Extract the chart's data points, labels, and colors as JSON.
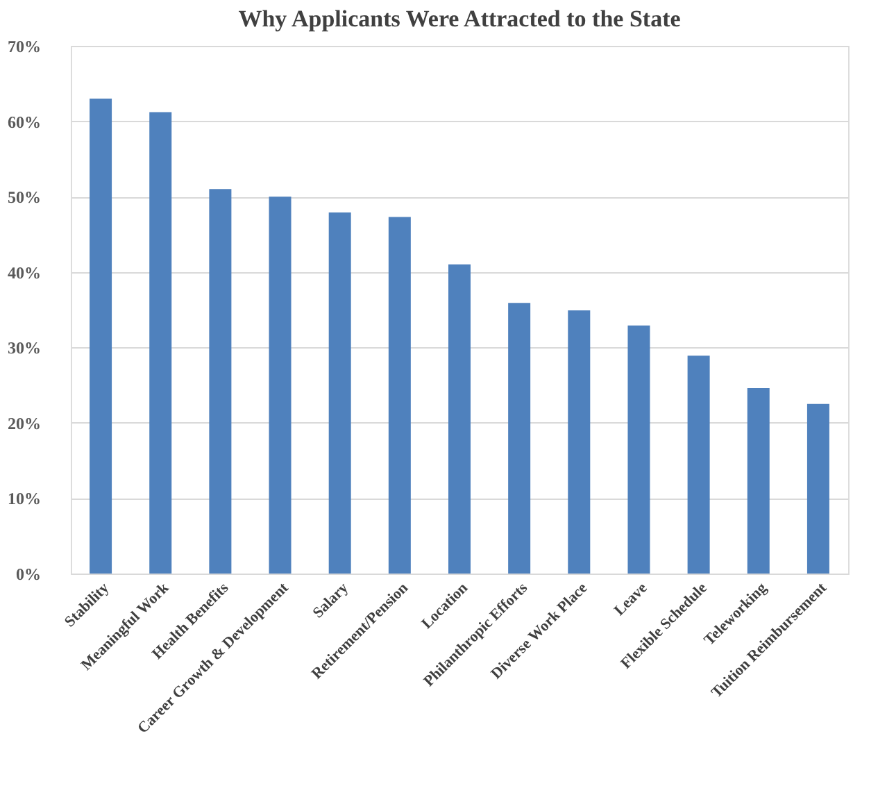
{
  "chart_data": {
    "type": "bar",
    "title": "Why Applicants Were Attracted to the State",
    "categories": [
      "Stability",
      "Meaningful Work",
      "Health Benefits",
      "Career Growth & Development",
      "Salary",
      "Retirement/Pension",
      "Location",
      "Philanthropic Efforts",
      "Diverse Work Place",
      "Leave",
      "Flexible Schedule",
      "Teleworking",
      "Tuition Reimbursement"
    ],
    "values": [
      63,
      61.2,
      51,
      50,
      47.9,
      47.3,
      41,
      35.9,
      34.9,
      32.9,
      28.9,
      24.6,
      22.5
    ],
    "color": "#4f81bd",
    "ylim": [
      0,
      70
    ],
    "yticks": [
      {
        "value": 0,
        "label": "0%"
      },
      {
        "value": 10,
        "label": "10%"
      },
      {
        "value": 20,
        "label": "20%"
      },
      {
        "value": 30,
        "label": "30%"
      },
      {
        "value": 40,
        "label": "40%"
      },
      {
        "value": 50,
        "label": "50%"
      },
      {
        "value": 60,
        "label": "60%"
      },
      {
        "value": 70,
        "label": "70%"
      }
    ],
    "grid": "y"
  }
}
